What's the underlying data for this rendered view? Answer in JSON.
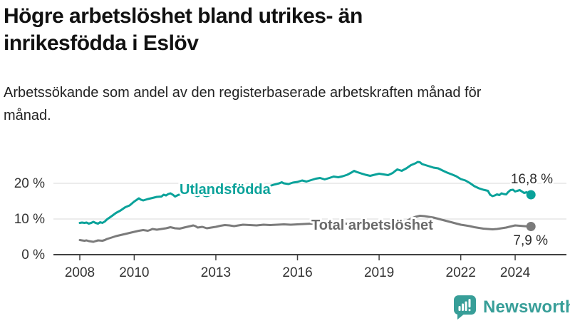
{
  "header": {
    "title": "Högre arbetslöshet bland utrikes- än inrikesfödda i Eslöv",
    "subtitle": "Arbetssökande som andel av den registerbaserade arbetskraften månad för månad."
  },
  "chart_data": {
    "type": "line",
    "title": "Högre arbetslöshet bland utrikes- än inrikesfödda i Eslöv",
    "subtitle": "Arbetssökande som andel av den registerbaserade arbetskraften månad för månad.",
    "unit": "%",
    "x_ticks": [
      2008,
      2010,
      2013,
      2016,
      2019,
      2022,
      2024
    ],
    "y_ticks": [
      0,
      10,
      20
    ],
    "y_tick_labels": [
      "0 %",
      "10 %",
      "20 %"
    ],
    "xlim": [
      2007.0,
      2025.9
    ],
    "ylim": [
      0,
      28
    ],
    "grid": "horizontal",
    "legend_position": "inline-labels",
    "series": [
      {
        "name": "Utlandsfödda",
        "color": "#0aa29a",
        "end_value": 16.8,
        "end_label": "16,8 %",
        "points": [
          [
            2008.0,
            8.9
          ],
          [
            2008.08,
            9.0
          ],
          [
            2008.17,
            8.9
          ],
          [
            2008.25,
            9.0
          ],
          [
            2008.33,
            8.7
          ],
          [
            2008.42,
            8.9
          ],
          [
            2008.5,
            9.2
          ],
          [
            2008.58,
            8.9
          ],
          [
            2008.67,
            8.7
          ],
          [
            2008.75,
            9.1
          ],
          [
            2008.83,
            8.9
          ],
          [
            2008.92,
            9.3
          ],
          [
            2009.0,
            9.9
          ],
          [
            2009.17,
            10.8
          ],
          [
            2009.33,
            11.7
          ],
          [
            2009.5,
            12.4
          ],
          [
            2009.67,
            13.3
          ],
          [
            2009.83,
            13.8
          ],
          [
            2010.0,
            14.9
          ],
          [
            2010.08,
            15.3
          ],
          [
            2010.17,
            15.8
          ],
          [
            2010.25,
            15.4
          ],
          [
            2010.33,
            15.2
          ],
          [
            2010.5,
            15.6
          ],
          [
            2010.67,
            15.9
          ],
          [
            2010.83,
            16.2
          ],
          [
            2011.0,
            16.3
          ],
          [
            2011.08,
            16.8
          ],
          [
            2011.17,
            16.6
          ],
          [
            2011.25,
            17.0
          ],
          [
            2011.33,
            17.2
          ],
          [
            2011.42,
            16.8
          ],
          [
            2011.5,
            16.3
          ],
          [
            2011.58,
            16.6
          ],
          [
            2011.67,
            16.9
          ],
          [
            2011.83,
            17.1
          ],
          [
            2012.0,
            18.3
          ],
          [
            2012.08,
            18.0
          ],
          [
            2012.17,
            17.4
          ],
          [
            2012.25,
            16.6
          ],
          [
            2012.33,
            16.4
          ],
          [
            2012.42,
            16.7
          ],
          [
            2012.5,
            16.9
          ],
          [
            2012.58,
            16.5
          ],
          [
            2012.67,
            16.4
          ],
          [
            2012.83,
            16.8
          ],
          [
            2013.0,
            17.0
          ],
          [
            2013.25,
            17.2
          ],
          [
            2013.5,
            17.5
          ],
          [
            2013.75,
            17.4
          ],
          [
            2014.0,
            17.7
          ],
          [
            2014.25,
            18.0
          ],
          [
            2014.5,
            18.2
          ],
          [
            2014.75,
            18.7
          ],
          [
            2015.0,
            19.3
          ],
          [
            2015.17,
            19.7
          ],
          [
            2015.33,
            20.0
          ],
          [
            2015.42,
            20.3
          ],
          [
            2015.5,
            20.0
          ],
          [
            2015.67,
            19.8
          ],
          [
            2015.83,
            20.2
          ],
          [
            2016.0,
            20.4
          ],
          [
            2016.17,
            20.8
          ],
          [
            2016.33,
            20.5
          ],
          [
            2016.5,
            20.9
          ],
          [
            2016.67,
            21.3
          ],
          [
            2016.83,
            21.5
          ],
          [
            2017.0,
            21.1
          ],
          [
            2017.17,
            21.5
          ],
          [
            2017.33,
            21.9
          ],
          [
            2017.5,
            21.7
          ],
          [
            2017.67,
            22.0
          ],
          [
            2017.83,
            22.4
          ],
          [
            2018.0,
            23.1
          ],
          [
            2018.08,
            23.5
          ],
          [
            2018.17,
            23.2
          ],
          [
            2018.33,
            22.8
          ],
          [
            2018.5,
            22.4
          ],
          [
            2018.67,
            22.1
          ],
          [
            2018.83,
            22.4
          ],
          [
            2019.0,
            22.7
          ],
          [
            2019.17,
            22.5
          ],
          [
            2019.33,
            22.3
          ],
          [
            2019.5,
            22.9
          ],
          [
            2019.58,
            23.4
          ],
          [
            2019.67,
            23.9
          ],
          [
            2019.75,
            23.7
          ],
          [
            2019.83,
            23.5
          ],
          [
            2020.0,
            24.2
          ],
          [
            2020.17,
            25.1
          ],
          [
            2020.33,
            25.6
          ],
          [
            2020.42,
            26.0
          ],
          [
            2020.5,
            25.9
          ],
          [
            2020.58,
            25.4
          ],
          [
            2020.75,
            25.0
          ],
          [
            2020.92,
            24.6
          ],
          [
            2021.0,
            24.4
          ],
          [
            2021.17,
            24.2
          ],
          [
            2021.33,
            23.6
          ],
          [
            2021.5,
            23.0
          ],
          [
            2021.67,
            22.5
          ],
          [
            2021.83,
            22.0
          ],
          [
            2022.0,
            21.2
          ],
          [
            2022.17,
            20.8
          ],
          [
            2022.33,
            20.1
          ],
          [
            2022.5,
            19.2
          ],
          [
            2022.67,
            18.6
          ],
          [
            2022.83,
            18.2
          ],
          [
            2023.0,
            17.9
          ],
          [
            2023.08,
            16.8
          ],
          [
            2023.17,
            16.4
          ],
          [
            2023.25,
            16.6
          ],
          [
            2023.33,
            16.9
          ],
          [
            2023.42,
            16.7
          ],
          [
            2023.5,
            17.2
          ],
          [
            2023.58,
            17.0
          ],
          [
            2023.67,
            16.9
          ],
          [
            2023.75,
            17.6
          ],
          [
            2023.83,
            18.1
          ],
          [
            2023.92,
            18.2
          ],
          [
            2024.0,
            17.7
          ],
          [
            2024.08,
            17.9
          ],
          [
            2024.17,
            18.1
          ],
          [
            2024.25,
            17.7
          ],
          [
            2024.33,
            17.3
          ],
          [
            2024.42,
            17.5
          ],
          [
            2024.5,
            17.1
          ],
          [
            2024.58,
            16.8
          ]
        ]
      },
      {
        "name": "Total arbetslöshet",
        "color": "#7b7b7b",
        "end_value": 7.9,
        "end_label": "7,9 %",
        "points": [
          [
            2008.0,
            4.1
          ],
          [
            2008.08,
            4.0
          ],
          [
            2008.17,
            3.9
          ],
          [
            2008.25,
            4.0
          ],
          [
            2008.33,
            3.8
          ],
          [
            2008.5,
            3.6
          ],
          [
            2008.58,
            3.8
          ],
          [
            2008.67,
            4.0
          ],
          [
            2008.83,
            3.9
          ],
          [
            2008.92,
            4.1
          ],
          [
            2009.0,
            4.4
          ],
          [
            2009.17,
            4.8
          ],
          [
            2009.33,
            5.2
          ],
          [
            2009.5,
            5.5
          ],
          [
            2009.67,
            5.8
          ],
          [
            2009.83,
            6.1
          ],
          [
            2010.0,
            6.4
          ],
          [
            2010.17,
            6.7
          ],
          [
            2010.33,
            6.9
          ],
          [
            2010.5,
            6.7
          ],
          [
            2010.58,
            6.9
          ],
          [
            2010.67,
            7.2
          ],
          [
            2010.83,
            7.0
          ],
          [
            2011.0,
            7.2
          ],
          [
            2011.17,
            7.4
          ],
          [
            2011.33,
            7.7
          ],
          [
            2011.5,
            7.4
          ],
          [
            2011.67,
            7.3
          ],
          [
            2011.83,
            7.6
          ],
          [
            2012.0,
            7.9
          ],
          [
            2012.17,
            8.2
          ],
          [
            2012.25,
            8.0
          ],
          [
            2012.33,
            7.6
          ],
          [
            2012.5,
            7.8
          ],
          [
            2012.67,
            7.4
          ],
          [
            2012.83,
            7.6
          ],
          [
            2013.0,
            7.8
          ],
          [
            2013.17,
            8.1
          ],
          [
            2013.33,
            8.3
          ],
          [
            2013.5,
            8.2
          ],
          [
            2013.67,
            8.0
          ],
          [
            2013.83,
            8.2
          ],
          [
            2014.0,
            8.4
          ],
          [
            2014.25,
            8.3
          ],
          [
            2014.5,
            8.2
          ],
          [
            2014.75,
            8.4
          ],
          [
            2015.0,
            8.3
          ],
          [
            2015.25,
            8.4
          ],
          [
            2015.5,
            8.5
          ],
          [
            2015.75,
            8.4
          ],
          [
            2016.0,
            8.5
          ],
          [
            2016.25,
            8.6
          ],
          [
            2016.5,
            8.7
          ],
          [
            2016.75,
            8.6
          ],
          [
            2017.0,
            8.8
          ],
          [
            2017.25,
            8.7
          ],
          [
            2017.5,
            8.8
          ],
          [
            2017.75,
            8.7
          ],
          [
            2018.0,
            8.6
          ],
          [
            2018.25,
            8.7
          ],
          [
            2018.5,
            8.6
          ],
          [
            2018.75,
            8.7
          ],
          [
            2019.0,
            8.8
          ],
          [
            2019.25,
            8.7
          ],
          [
            2019.5,
            8.9
          ],
          [
            2019.75,
            9.1
          ],
          [
            2020.0,
            9.4
          ],
          [
            2020.17,
            10.1
          ],
          [
            2020.33,
            10.6
          ],
          [
            2020.5,
            10.9
          ],
          [
            2020.67,
            10.8
          ],
          [
            2020.83,
            10.6
          ],
          [
            2021.0,
            10.4
          ],
          [
            2021.25,
            9.9
          ],
          [
            2021.5,
            9.4
          ],
          [
            2021.75,
            8.9
          ],
          [
            2022.0,
            8.4
          ],
          [
            2022.17,
            8.2
          ],
          [
            2022.33,
            8.0
          ],
          [
            2022.5,
            7.7
          ],
          [
            2022.67,
            7.5
          ],
          [
            2022.83,
            7.3
          ],
          [
            2023.0,
            7.2
          ],
          [
            2023.17,
            7.1
          ],
          [
            2023.33,
            7.2
          ],
          [
            2023.5,
            7.4
          ],
          [
            2023.67,
            7.6
          ],
          [
            2023.83,
            7.9
          ],
          [
            2024.0,
            8.2
          ],
          [
            2024.17,
            8.1
          ],
          [
            2024.33,
            8.0
          ],
          [
            2024.5,
            7.9
          ],
          [
            2024.58,
            7.9
          ]
        ]
      }
    ]
  },
  "branding": {
    "logo_text": "Newsworthy",
    "logo_icon": "newsworthy-speech-bubble-bar-chart-icon",
    "brand_color": "#379e98"
  },
  "colors": {
    "series_utlandsfodda": "#0aa29a",
    "series_total": "#7b7b7b",
    "series_label_total": "#6b6b6b",
    "title_text": "#111111",
    "subtitle_text": "#222222",
    "axis_text": "#333333",
    "value_label_text": "#2b2b2b",
    "gridline": "#d9d9d9",
    "axis_line": "#404040",
    "background": "#ffffff"
  }
}
